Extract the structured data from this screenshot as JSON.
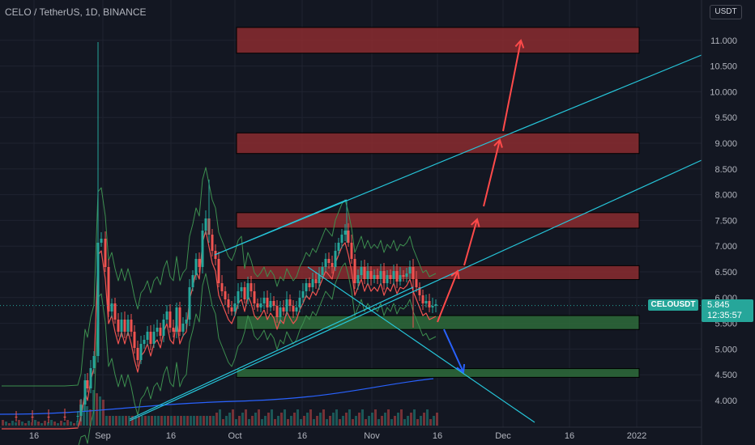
{
  "header": {
    "title": "CELO / TetherUS, 1D, BINANCE",
    "currency": "USDT"
  },
  "badges": {
    "ticker": "CELOUSDT",
    "price": "5.845",
    "countdown": "12:35:57"
  },
  "colors": {
    "background": "#131722",
    "bull": "#26a69a",
    "bear": "#ef5350",
    "resistance": "#8b2b2f",
    "support": "#2e6b3a",
    "trendline": "#26c6da",
    "arrow_up": "#ff4a4a",
    "arrow_down": "#2962ff",
    "bb": "#3d8f4f",
    "ma_short": "#ef5350",
    "ma_long": "#2962ff"
  },
  "chart_data": {
    "type": "candlestick",
    "y_axis": {
      "ticks": [
        "4.000",
        "4.500",
        "5.000",
        "5.500",
        "6.000",
        "6.500",
        "7.000",
        "7.500",
        "8.000",
        "8.500",
        "9.000",
        "9.500",
        "10.000",
        "10.500",
        "11.000"
      ]
    },
    "x_axis": {
      "ticks": [
        "16",
        "Sep",
        "16",
        "Oct",
        "16",
        "Nov",
        "16",
        "Dec",
        "16",
        "2022"
      ]
    },
    "last_price": 5.845,
    "resistance_zones": [
      {
        "from": 10.75,
        "to": 11.25
      },
      {
        "from": 8.8,
        "to": 9.2
      },
      {
        "from": 7.35,
        "to": 7.65
      },
      {
        "from": 6.35,
        "to": 6.62
      }
    ],
    "support_zones": [
      {
        "from": 5.38,
        "to": 5.65
      },
      {
        "from": 4.45,
        "to": 4.62
      }
    ]
  }
}
